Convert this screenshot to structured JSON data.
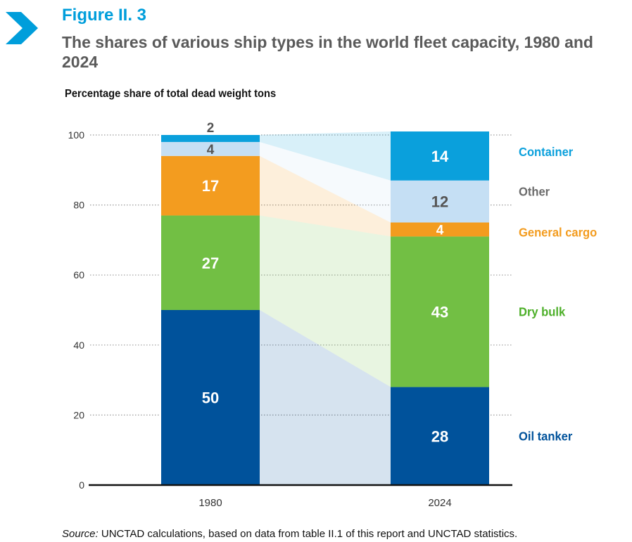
{
  "header": {
    "figure_label": "Figure II. 3",
    "title": "The shares of various ship types in the world fleet capacity, 1980 and 2024"
  },
  "colors": {
    "accent": "#009edb",
    "oil_tanker": "#00529b",
    "dry_bulk": "#72bf44",
    "general_cargo": "#f39c1f",
    "other": "#c5dff4",
    "container": "#0aa0dc"
  },
  "chart_data": {
    "type": "bar",
    "stacked": true,
    "ylabel": "Percentage share of  total dead weight tons",
    "ylim": [
      0,
      100
    ],
    "yticks": [
      0,
      20,
      40,
      60,
      80,
      100
    ],
    "categories": [
      "1980",
      "2024"
    ],
    "grid": "dotted",
    "series": [
      {
        "name": "Oil tanker",
        "values": [
          50,
          28
        ],
        "color": "#00529b",
        "label_color": "#00529b",
        "data_label_color": "#ffffff"
      },
      {
        "name": "Dry bulk",
        "values": [
          27,
          43
        ],
        "color": "#72bf44",
        "label_color": "#4caf28",
        "data_label_color": "#ffffff"
      },
      {
        "name": "General cargo",
        "values": [
          17,
          4
        ],
        "color": "#f39c1f",
        "label_color": "#f39c1f",
        "data_label_color": "#ffffff"
      },
      {
        "name": "Other",
        "values": [
          4,
          12
        ],
        "color": "#c5dff4",
        "label_color": "#6b6b6b",
        "data_label_color": "#555555"
      },
      {
        "name": "Container",
        "values": [
          2,
          14
        ],
        "color": "#0aa0dc",
        "label_color": "#0aa0dc",
        "data_label_color": "#ffffff"
      }
    ],
    "legend": "right"
  },
  "footer": {
    "source_prefix": "Source:",
    "source_text": " UNCTAD calculations, based on data from table II.1 of this report and UNCTAD statistics."
  }
}
